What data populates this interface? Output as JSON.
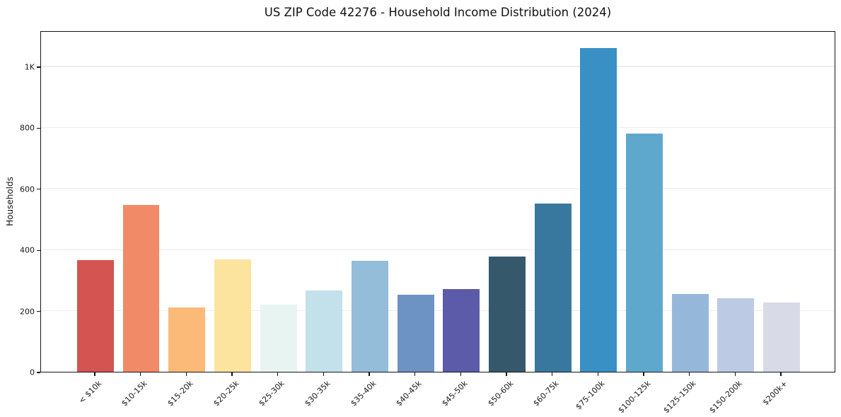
{
  "figure": {
    "title": "US ZIP Code 42276 - Household Income Distribution (2024)",
    "background_color": "#ffffff",
    "spine_color": "#151515",
    "grid_color": "#ebebf2",
    "text_color": "#1a1a1a"
  },
  "chart_data": {
    "type": "bar",
    "title": "US ZIP Code 42276 - Household Income Distribution (2024)",
    "xlabel": "",
    "ylabel": "Households",
    "categories": [
      "< $10k",
      "$10-15k",
      "$15-20k",
      "$20-25k",
      "$25-30k",
      "$30-35k",
      "$35-40k",
      "$40-45k",
      "$45-50k",
      "$50-60k",
      "$60-75k",
      "$75-100k",
      "$100-125k",
      "$125-150k",
      "$150-200k",
      "$200k+"
    ],
    "values": [
      365,
      546,
      210,
      367,
      221,
      266,
      363,
      253,
      271,
      377,
      550,
      1060,
      781,
      254,
      241,
      227
    ],
    "bar_colors": [
      "#d45452",
      "#f18a66",
      "#fbba77",
      "#fce49e",
      "#e8f4f1",
      "#c2e1ea",
      "#93bdd9",
      "#6d92c4",
      "#5b5ba9",
      "#35596b",
      "#38789e",
      "#3990c5",
      "#5fa8cd",
      "#95b8da",
      "#bccae3",
      "#d8dae8"
    ],
    "ylim": [
      0,
      1118
    ],
    "y_ticks": [
      {
        "value": 0,
        "label": "0"
      },
      {
        "value": 200,
        "label": "200"
      },
      {
        "value": 400,
        "label": "400"
      },
      {
        "value": 600,
        "label": "600"
      },
      {
        "value": 800,
        "label": "800"
      },
      {
        "value": 1000,
        "label": "1K"
      }
    ],
    "grid": "horizontal",
    "legend_position": "none",
    "x_tick_rotation_deg": 45
  }
}
